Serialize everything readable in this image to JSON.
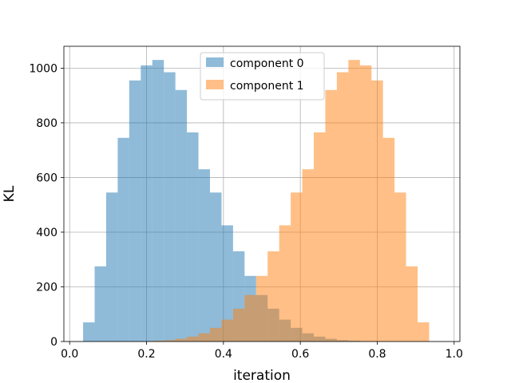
{
  "chart_data": {
    "type": "bar",
    "title": "",
    "xlabel": "iteration",
    "ylabel": "KL",
    "xlim": [
      -0.015,
      1.015
    ],
    "ylim": [
      0,
      1080
    ],
    "xticks": [
      0.0,
      0.2,
      0.4,
      0.6,
      0.8,
      1.0
    ],
    "xtick_labels": [
      "0.0",
      "0.2",
      "0.4",
      "0.6",
      "0.8",
      "1.0"
    ],
    "yticks": [
      0,
      200,
      400,
      600,
      800,
      1000
    ],
    "ytick_labels": [
      "0",
      "200",
      "400",
      "600",
      "800",
      "1000"
    ],
    "grid": true,
    "legend_position": "top-center",
    "series": [
      {
        "name": "component 0",
        "color": "#1f77b4",
        "alpha": 0.5,
        "bin_start": 0.035,
        "bin_width": 0.03,
        "values": [
          70,
          275,
          545,
          745,
          955,
          1010,
          1030,
          985,
          920,
          765,
          630,
          545,
          425,
          330,
          240,
          170,
          120,
          80,
          50,
          30,
          18,
          10,
          5,
          3,
          1,
          0,
          0,
          0,
          0,
          0,
          0
        ]
      },
      {
        "name": "component 1",
        "color": "#ff7f0e",
        "alpha": 0.5,
        "bin_start": 0.035,
        "bin_width": 0.03,
        "values": [
          0,
          0,
          0,
          0,
          0,
          1,
          3,
          5,
          10,
          18,
          30,
          50,
          80,
          120,
          170,
          240,
          330,
          425,
          545,
          630,
          765,
          920,
          985,
          1030,
          1010,
          955,
          745,
          545,
          275,
          70,
          0
        ]
      }
    ]
  }
}
